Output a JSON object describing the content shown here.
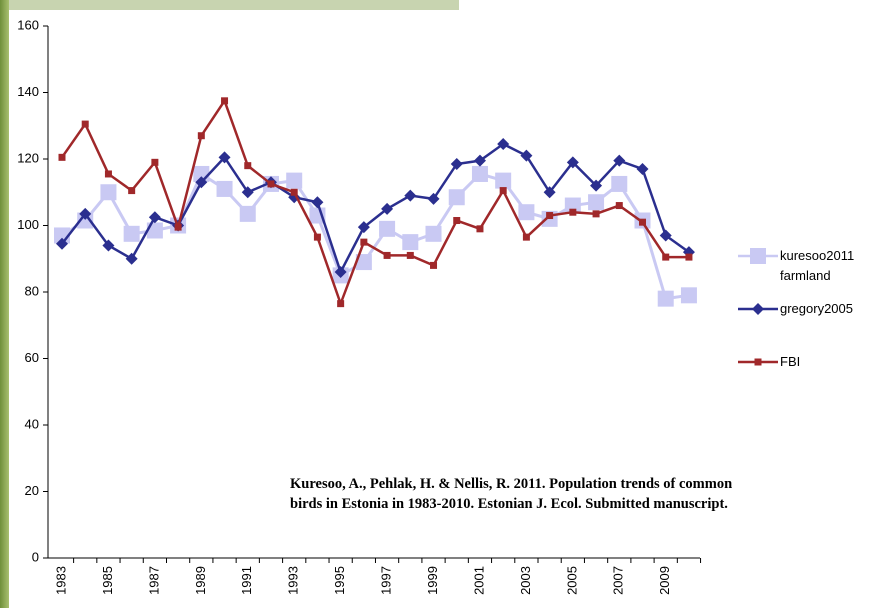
{
  "chart_data": {
    "type": "line",
    "categories": [
      "1983",
      null,
      "1985",
      null,
      "1987",
      null,
      "1989",
      null,
      "1991",
      null,
      "1993",
      null,
      "1995",
      null,
      "1997",
      null,
      "1999",
      null,
      "2001",
      null,
      "2003",
      null,
      "2005",
      null,
      "2007",
      null,
      "2009",
      null
    ],
    "series": [
      {
        "name": "kuresoo2011 farmland",
        "color": "#c9c9f3",
        "values": [
          97,
          101.5,
          110,
          97.5,
          98.5,
          100,
          115.5,
          111,
          103.5,
          112.5,
          113.5,
          103,
          85,
          89,
          99,
          95,
          97.5,
          108.5,
          115.5,
          113.5,
          104,
          102,
          106,
          107,
          112.5,
          101.5,
          78,
          79
        ]
      },
      {
        "name": "gregory2005",
        "color": "#2b2f8f",
        "values": [
          94.5,
          103.5,
          94,
          90,
          102.5,
          100,
          113,
          120.5,
          110,
          113,
          108.5,
          107,
          86,
          99.5,
          105,
          109,
          108,
          118.5,
          119.5,
          124.5,
          121,
          110,
          119,
          112,
          119.5,
          117,
          97,
          92
        ]
      },
      {
        "name": "FBI",
        "color": "#a0282a",
        "values": [
          120.5,
          130.5,
          115.5,
          110.5,
          119,
          99.5,
          127,
          137.5,
          118,
          112.5,
          110,
          96.5,
          76.5,
          95,
          91,
          91,
          88,
          101.5,
          99,
          110.5,
          96.5,
          103,
          104,
          103.5,
          106,
          101,
          90.5,
          90.5
        ]
      }
    ],
    "ylim": [
      0,
      160
    ],
    "yticks": [
      0,
      20,
      40,
      60,
      80,
      100,
      120,
      140,
      160
    ],
    "annotation": [
      "Kuresoo, A., Pehlak, H. & Nellis, R. 2011. Population trends of common",
      "birds in Estonia in 1983-2010. Estonian J. Ecol. Submitted manuscript."
    ]
  }
}
